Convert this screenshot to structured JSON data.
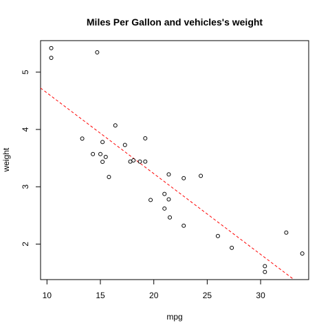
{
  "chart_data": {
    "type": "scatter",
    "title": "Miles Per Gallon and vehicles's weight",
    "xlabel": "mpg",
    "ylabel": "weight",
    "xlim": [
      9.4,
      34.5
    ],
    "ylim": [
      1.38,
      5.55
    ],
    "x_ticks": [
      10,
      15,
      20,
      25,
      30
    ],
    "y_ticks": [
      2,
      3,
      4,
      5
    ],
    "grid": false,
    "legend": "none",
    "colors": {
      "points": "#000000",
      "fit_line": "#ff0000"
    },
    "points": [
      {
        "x": 10.4,
        "y": 5.42
      },
      {
        "x": 10.4,
        "y": 5.25
      },
      {
        "x": 14.7,
        "y": 5.345
      },
      {
        "x": 13.3,
        "y": 3.84
      },
      {
        "x": 14.3,
        "y": 3.57
      },
      {
        "x": 15.0,
        "y": 3.57
      },
      {
        "x": 15.2,
        "y": 3.78
      },
      {
        "x": 15.2,
        "y": 3.435
      },
      {
        "x": 15.5,
        "y": 3.52
      },
      {
        "x": 15.8,
        "y": 3.17
      },
      {
        "x": 16.4,
        "y": 4.07
      },
      {
        "x": 17.3,
        "y": 3.73
      },
      {
        "x": 17.8,
        "y": 3.44
      },
      {
        "x": 18.1,
        "y": 3.46
      },
      {
        "x": 18.7,
        "y": 3.44
      },
      {
        "x": 19.2,
        "y": 3.44
      },
      {
        "x": 19.2,
        "y": 3.845
      },
      {
        "x": 19.7,
        "y": 2.77
      },
      {
        "x": 21.0,
        "y": 2.62
      },
      {
        "x": 21.0,
        "y": 2.875
      },
      {
        "x": 21.4,
        "y": 3.215
      },
      {
        "x": 21.4,
        "y": 2.78
      },
      {
        "x": 21.5,
        "y": 2.465
      },
      {
        "x": 22.8,
        "y": 3.15
      },
      {
        "x": 22.8,
        "y": 2.32
      },
      {
        "x": 24.4,
        "y": 3.19
      },
      {
        "x": 26.0,
        "y": 2.14
      },
      {
        "x": 27.3,
        "y": 1.935
      },
      {
        "x": 30.4,
        "y": 1.615
      },
      {
        "x": 30.4,
        "y": 1.513
      },
      {
        "x": 32.4,
        "y": 2.2
      },
      {
        "x": 33.9,
        "y": 1.835
      }
    ],
    "fit_line": {
      "style": "dashed",
      "intercept": 6.047,
      "slope": -0.1409
    }
  }
}
